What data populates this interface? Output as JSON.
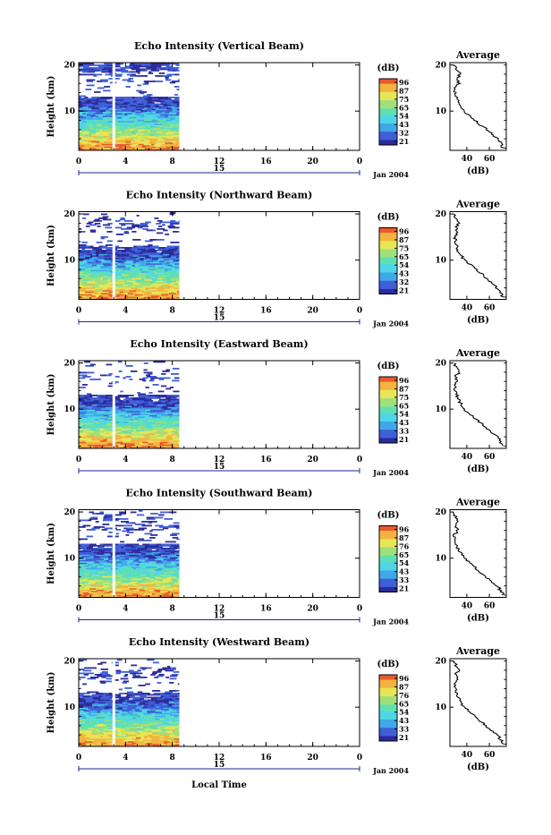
{
  "chart_data": {
    "type": "heatmap",
    "shared": {
      "x_ticks": [
        "0",
        "4",
        "8",
        "12",
        "16",
        "20",
        "0"
      ],
      "day_marker": "15",
      "date_label": "Jan 2004",
      "xlabel": "Local Time",
      "ylabel": "Height (km)",
      "y_ticks": [
        "20",
        "10"
      ],
      "ylim": [
        1.5,
        20.5
      ],
      "xlim": [
        0,
        24
      ],
      "data_extent_hours": [
        0,
        8.6
      ],
      "gap_hours": 3.0,
      "colorbar_unit": "(dB)",
      "avg_title": "Average",
      "avg_xlabel": "(dB)",
      "avg_x_ticks": [
        "40",
        "60"
      ],
      "avg_xlim": [
        25,
        75
      ],
      "colors": [
        "#2b2b9c",
        "#3f5fd8",
        "#3fa9e8",
        "#4fd6e6",
        "#5fe0b0",
        "#9fe07a",
        "#e6e655",
        "#f2b340",
        "#e85b2b"
      ]
    },
    "panels": [
      {
        "title": "Echo Intensity (Vertical Beam)",
        "colorbar_ticks": [
          "96",
          "87",
          "75",
          "65",
          "54",
          "43",
          "32",
          "21"
        ],
        "average_profile": {
          "height_km": [
            2,
            3,
            4,
            5,
            6,
            7,
            8,
            9,
            10,
            11,
            12,
            13,
            14,
            15,
            16,
            17,
            18,
            19,
            20
          ],
          "db": [
            72,
            70,
            68,
            62,
            58,
            52,
            47,
            42,
            37,
            34,
            32,
            31,
            30,
            29,
            33,
            31,
            34,
            31,
            28
          ]
        }
      },
      {
        "title": "Echo Intensity (Northward Beam)",
        "colorbar_ticks": [
          "96",
          "87",
          "75",
          "65",
          "54",
          "43",
          "32",
          "21"
        ],
        "average_profile": {
          "height_km": [
            2,
            3,
            4,
            5,
            6,
            7,
            8,
            9,
            10,
            11,
            12,
            13,
            14,
            15,
            16,
            17,
            18,
            19,
            20
          ],
          "db": [
            72,
            70,
            66,
            62,
            58,
            53,
            48,
            43,
            38,
            35,
            32,
            31,
            30,
            29,
            32,
            30,
            33,
            30,
            28
          ]
        }
      },
      {
        "title": "Echo Intensity (Eastward Beam)",
        "colorbar_ticks": [
          "96",
          "87",
          "75",
          "65",
          "54",
          "43",
          "33",
          "21"
        ],
        "average_profile": {
          "height_km": [
            2,
            3,
            4,
            5,
            6,
            7,
            8,
            9,
            10,
            11,
            12,
            13,
            14,
            15,
            16,
            17,
            18,
            19,
            20
          ],
          "db": [
            72,
            70,
            67,
            61,
            57,
            52,
            47,
            42,
            38,
            35,
            33,
            31,
            30,
            29,
            32,
            30,
            33,
            30,
            29
          ]
        }
      },
      {
        "title": "Echo Intensity (Southward Beam)",
        "colorbar_ticks": [
          "96",
          "87",
          "76",
          "65",
          "54",
          "43",
          "33",
          "21"
        ],
        "average_profile": {
          "height_km": [
            2,
            3,
            4,
            5,
            6,
            7,
            8,
            9,
            10,
            11,
            12,
            13,
            14,
            15,
            16,
            17,
            18,
            19,
            20
          ],
          "db": [
            72,
            70,
            67,
            62,
            57,
            52,
            47,
            42,
            38,
            35,
            32,
            31,
            30,
            29,
            32,
            30,
            33,
            30,
            28
          ]
        }
      },
      {
        "title": "Echo Intensity (Westward Beam)",
        "colorbar_ticks": [
          "96",
          "87",
          "76",
          "65",
          "54",
          "43",
          "33",
          "21"
        ],
        "average_profile": {
          "height_km": [
            2,
            3,
            4,
            5,
            6,
            7,
            8,
            9,
            10,
            11,
            12,
            13,
            14,
            15,
            16,
            17,
            18,
            19,
            20
          ],
          "db": [
            72,
            70,
            67,
            61,
            57,
            52,
            47,
            42,
            38,
            35,
            33,
            31,
            30,
            29,
            32,
            30,
            33,
            30,
            29
          ]
        }
      }
    ]
  }
}
